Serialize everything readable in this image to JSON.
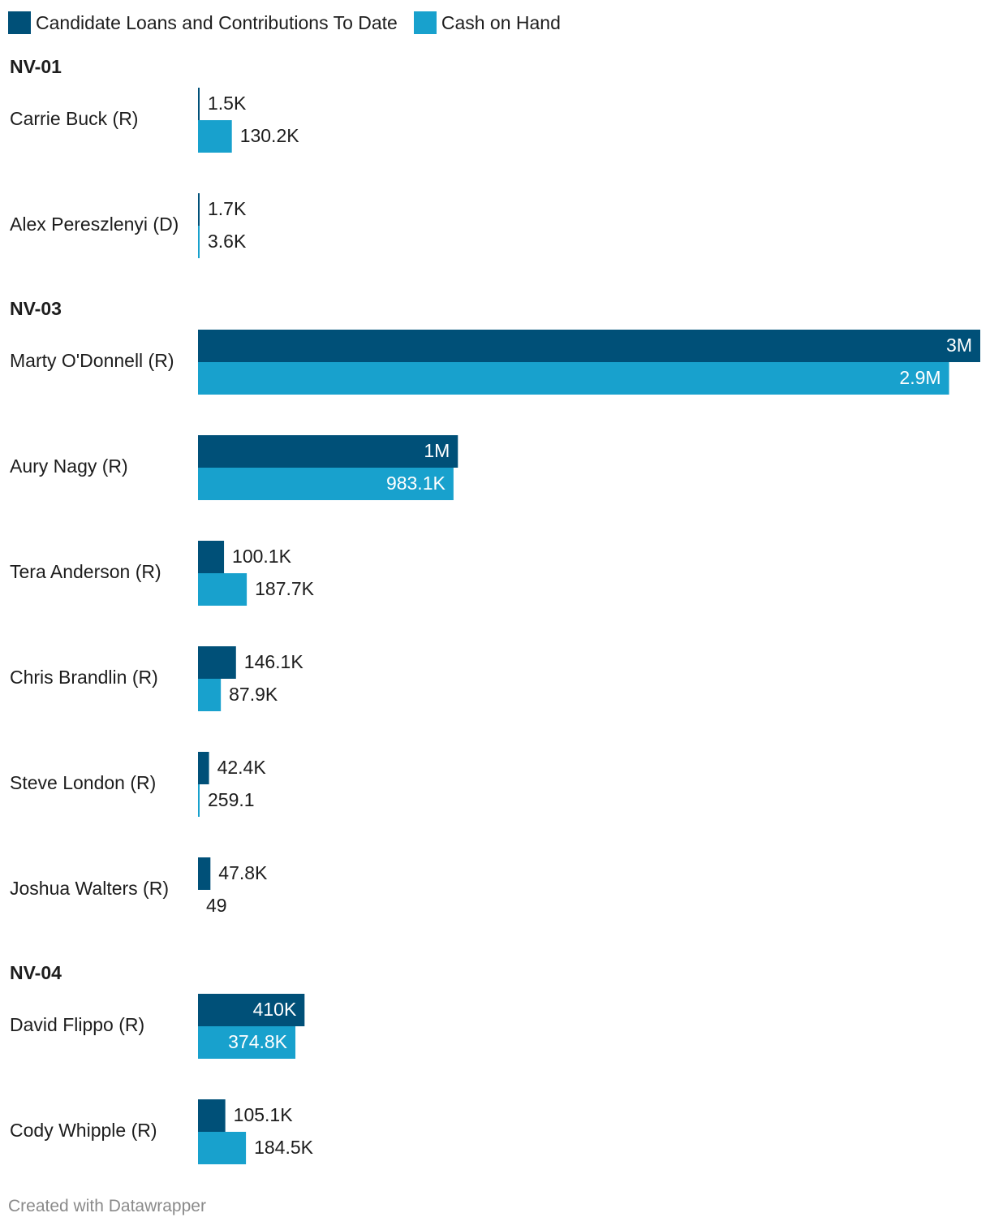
{
  "legend": [
    {
      "label": "Candidate Loans and Contributions To Date",
      "color": "#005078"
    },
    {
      "label": "Cash on Hand",
      "color": "#18a1cd"
    }
  ],
  "footer": "Created with Datawrapper",
  "chart_data": {
    "type": "bar",
    "orientation": "horizontal",
    "series": [
      {
        "name": "Candidate Loans and Contributions To Date",
        "color": "#005078"
      },
      {
        "name": "Cash on Hand",
        "color": "#18a1cd"
      }
    ],
    "xlim": [
      0,
      3010000
    ],
    "groups": [
      {
        "name": "NV-01",
        "candidates": [
          {
            "name": "Carrie Buck (R)",
            "values": [
              1500,
              130200
            ],
            "labels": [
              "1.5K",
              "130.2K"
            ]
          },
          {
            "name": "Alex Pereszlenyi (D)",
            "values": [
              1700,
              3600
            ],
            "labels": [
              "1.7K",
              "3.6K"
            ]
          }
        ]
      },
      {
        "name": "NV-03",
        "candidates": [
          {
            "name": "Marty O'Donnell (R)",
            "values": [
              3010000,
              2890000
            ],
            "labels": [
              "3M",
              "2.9M"
            ]
          },
          {
            "name": "Aury Nagy (R)",
            "values": [
              1000000,
              983100
            ],
            "labels": [
              "1M",
              "983.1K"
            ]
          },
          {
            "name": "Tera Anderson (R)",
            "values": [
              100100,
              187700
            ],
            "labels": [
              "100.1K",
              "187.7K"
            ]
          },
          {
            "name": "Chris Brandlin (R)",
            "values": [
              146100,
              87900
            ],
            "labels": [
              "146.1K",
              "87.9K"
            ]
          },
          {
            "name": "Steve London (R)",
            "values": [
              42400,
              259.1
            ],
            "labels": [
              "42.4K",
              "259.1"
            ]
          },
          {
            "name": "Joshua Walters (R)",
            "values": [
              47800,
              49
            ],
            "labels": [
              "47.8K",
              "49"
            ]
          }
        ]
      },
      {
        "name": "NV-04",
        "candidates": [
          {
            "name": "David Flippo (R)",
            "values": [
              410000,
              374800
            ],
            "labels": [
              "410K",
              "374.8K"
            ]
          },
          {
            "name": "Cody Whipple (R)",
            "values": [
              105100,
              184500
            ],
            "labels": [
              "105.1K",
              "184.5K"
            ]
          }
        ]
      }
    ]
  }
}
